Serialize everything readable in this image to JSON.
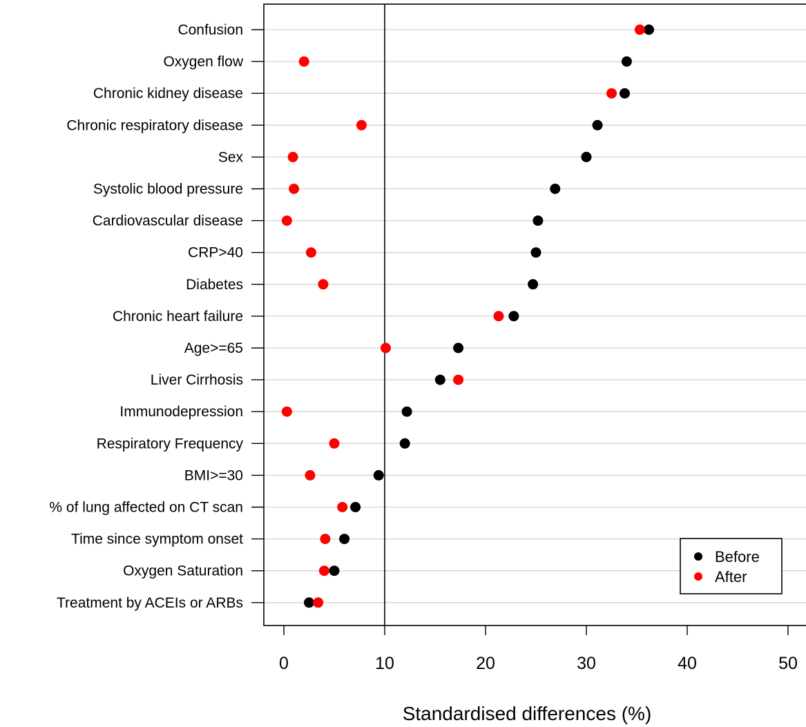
{
  "chart_data": {
    "type": "scatter",
    "xlabel": "Standardised differences (%)",
    "ylabel": "",
    "xlim": [
      0,
      50
    ],
    "xticks": [
      "0",
      "10",
      "20",
      "30",
      "40",
      "50"
    ],
    "reference_line_x": 10,
    "grid": "horizontal",
    "legend_position": "bottom-right",
    "categories": [
      "Confusion",
      "Oxygen flow",
      "Chronic kidney disease",
      "Chronic respiratory disease",
      "Sex",
      "Systolic blood pressure",
      "Cardiovascular disease",
      "CRP>40",
      "Diabetes",
      "Chronic heart failure",
      "Age>=65",
      "Liver Cirrhosis",
      "Immunodepression",
      "Respiratory Frequency",
      "BMI>=30",
      "% of lung affected on CT scan",
      "Time since symptom onset",
      "Oxygen Saturation",
      "Treatment by ACEIs or ARBs"
    ],
    "series": [
      {
        "name": "Before",
        "color": "#000000",
        "values": [
          36.2,
          34.0,
          33.8,
          31.1,
          30.0,
          26.9,
          25.2,
          25.0,
          24.7,
          22.8,
          17.3,
          15.5,
          12.2,
          12.0,
          9.4,
          7.1,
          6.0,
          5.0,
          2.5
        ]
      },
      {
        "name": "After",
        "color": "#ff0000",
        "values": [
          35.3,
          2.0,
          32.5,
          7.7,
          0.9,
          1.0,
          0.3,
          2.7,
          3.9,
          21.3,
          10.1,
          17.3,
          0.3,
          5.0,
          2.6,
          5.8,
          4.1,
          4.0,
          3.4
        ]
      }
    ]
  }
}
